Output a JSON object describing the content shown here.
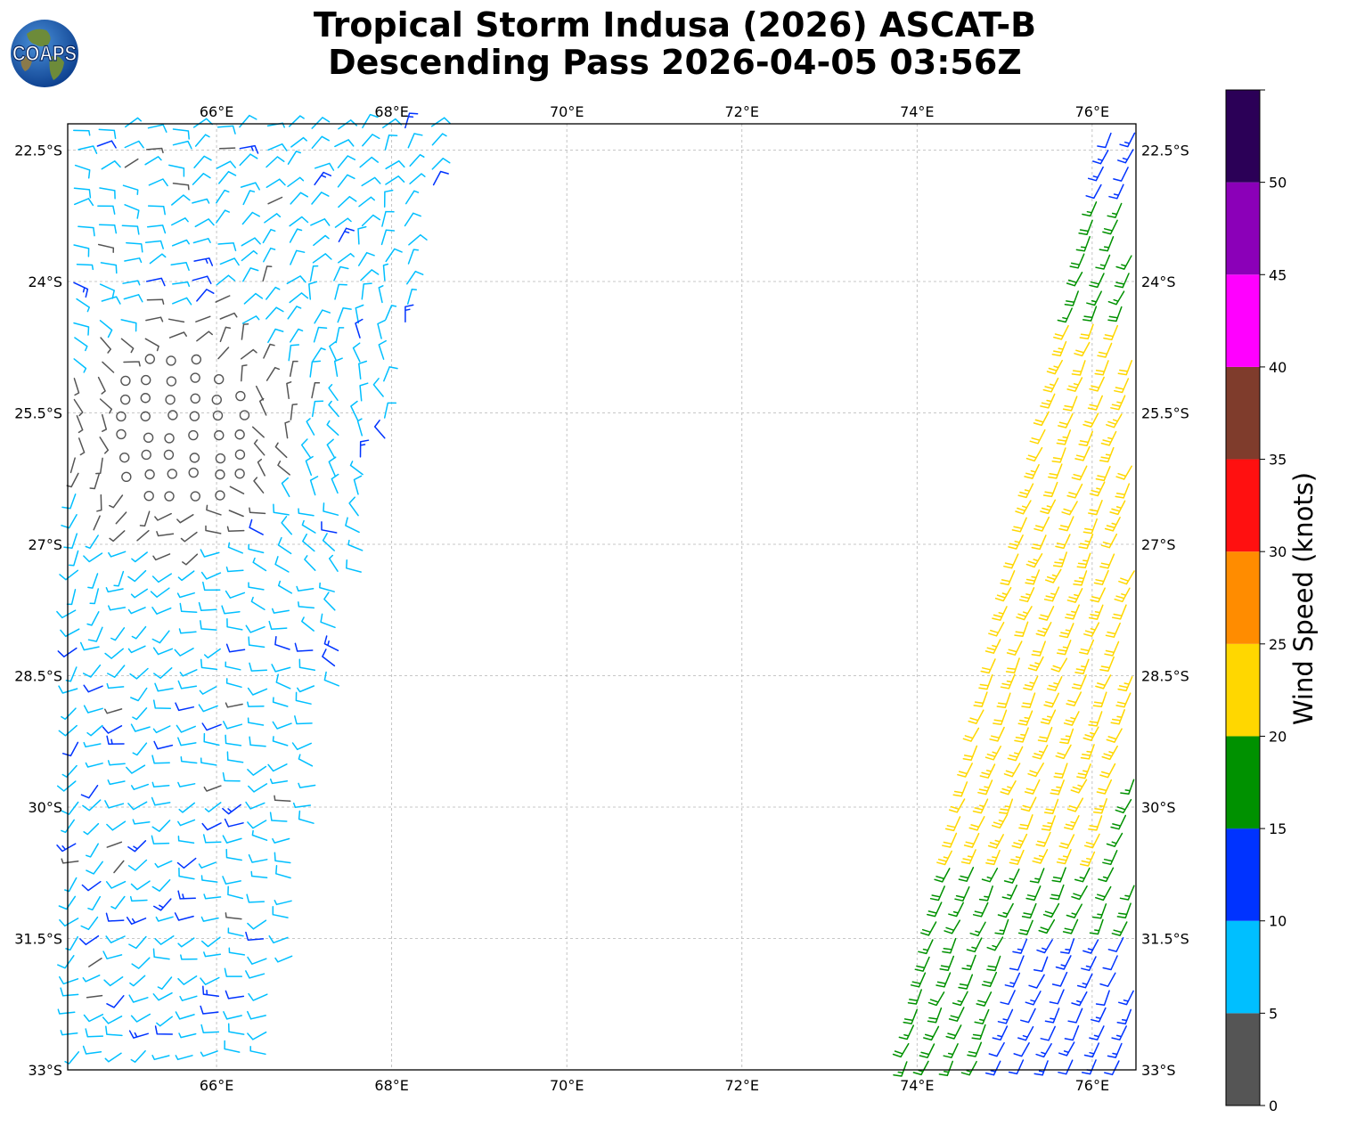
{
  "title": {
    "line1": "Tropical Storm Indusa (2026) ASCAT-B",
    "line2": "Descending Pass 2026-04-05 03:56Z"
  },
  "logo": {
    "text": "COAPS",
    "icon": "globe-icon"
  },
  "map": {
    "lon_range": [
      64.3,
      76.5
    ],
    "lat_range": [
      -33.0,
      -22.2
    ],
    "lon_ticks": [
      66,
      68,
      70,
      72,
      74,
      76
    ],
    "lon_tick_labels": [
      "66°E",
      "68°E",
      "70°E",
      "72°E",
      "74°E",
      "76°E"
    ],
    "lat_ticks": [
      -22.5,
      -24,
      -25.5,
      -27,
      -28.5,
      -30,
      -31.5,
      -33
    ],
    "lat_tick_labels": [
      "22.5°S",
      "24°S",
      "25.5°S",
      "27°S",
      "28.5°S",
      "30°S",
      "31.5°S",
      "33°S"
    ],
    "gridlines": true,
    "swaths": [
      {
        "name": "west-swath",
        "dominant_speed_knots": "5-10",
        "lons_at_north": [
          64.3,
          68.6
        ],
        "lons_at_south": [
          64.3,
          66.6
        ]
      },
      {
        "name": "east-swath",
        "dominant_speed_knots": "15-25",
        "lons_at_north": [
          76.2,
          76.5
        ],
        "lons_at_south": [
          73.8,
          76.5
        ]
      }
    ]
  },
  "colorbar": {
    "label": "Wind Speed (knots)",
    "tick_labels": [
      "0",
      "5",
      "10",
      "15",
      "20",
      "25",
      "30",
      "35",
      "40",
      "45",
      "50"
    ],
    "bins": [
      {
        "range": [
          0,
          5
        ],
        "color": "#555555"
      },
      {
        "range": [
          5,
          10
        ],
        "color": "#00bfff"
      },
      {
        "range": [
          10,
          15
        ],
        "color": "#0033ff"
      },
      {
        "range": [
          15,
          20
        ],
        "color": "#009100"
      },
      {
        "range": [
          20,
          25
        ],
        "color": "#ffd700"
      },
      {
        "range": [
          25,
          30
        ],
        "color": "#ff8c00"
      },
      {
        "range": [
          30,
          35
        ],
        "color": "#ff1010"
      },
      {
        "range": [
          35,
          40
        ],
        "color": "#7f3c2c"
      },
      {
        "range": [
          40,
          45
        ],
        "color": "#ff00ff"
      },
      {
        "range": [
          45,
          50
        ],
        "color": "#8b00b8"
      },
      {
        "range": [
          50,
          55
        ],
        "color": "#2b0057"
      }
    ]
  }
}
